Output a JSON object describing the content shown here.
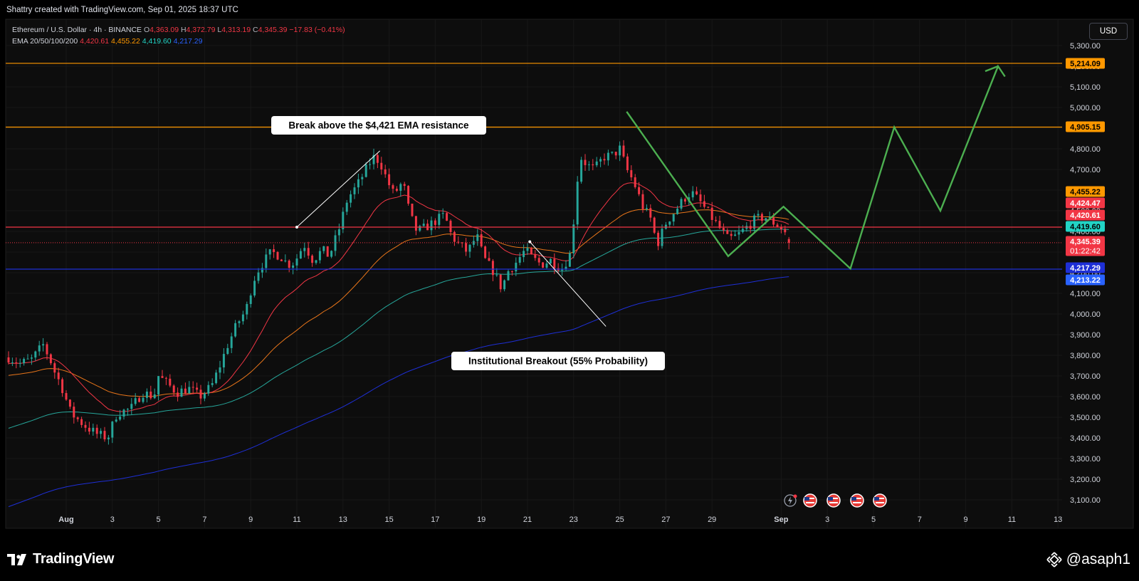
{
  "header": {
    "attribution": "Shattry created with TradingView.com, Sep 01, 2025 18:37 UTC"
  },
  "legend": {
    "symbol": "Ethereum / U.S. Dollar · 4h · BINANCE",
    "o_label": "O",
    "o_value": "4,363.09",
    "h_label": "H",
    "h_value": "4,372.79",
    "l_label": "L",
    "l_value": "4,313.19",
    "c_label": "C",
    "c_value": "4,345.39",
    "change": "−17.83 (−0.41%)",
    "ema_label": "EMA 20/50/100/200",
    "ema20": "4,420.61",
    "ema50": "4,455.22",
    "ema100": "4,419.60",
    "ema200": "4,217.29"
  },
  "toolbar": {
    "currency": "USD"
  },
  "footer": {
    "brand": "TradingView",
    "author": "@asaph1"
  },
  "annotations": [
    {
      "text": "Break above the $4,421 EMA resistance"
    },
    {
      "text": "Institutional Breakout (55% Probability)"
    }
  ],
  "colors": {
    "up": "#26a69a",
    "down": "#f23645",
    "ema20": "#f23645",
    "ema50": "#e8751a",
    "ema100": "#26a69a",
    "ema200": "#1e2fd6",
    "projection": "#4caf50",
    "resistance": "#ff9800",
    "support": "#2962ff",
    "background": "#0d0d0d"
  },
  "chart_data": {
    "type": "candlestick",
    "symbol": "ETHUSD",
    "timeframe": "4h",
    "exchange": "BINANCE",
    "ylim": [
      3050,
      5360
    ],
    "y_ticks": [
      3100,
      3200,
      3300,
      3400,
      3500,
      3600,
      3700,
      3800,
      3900,
      4000,
      4100,
      4200,
      4300,
      4400,
      4500,
      4600,
      4700,
      4800,
      4900,
      5000,
      5100,
      5200,
      5300
    ],
    "y_tick_labels": [
      "3,100.00",
      "3,200.00",
      "3,300.00",
      "3,400.00",
      "3,500.00",
      "3,600.00",
      "3,700.00",
      "3,800.00",
      "3,900.00",
      "4,000.00",
      "4,100.00",
      "4,200.00",
      "4,300.00",
      "4,400.00",
      "4,500.00",
      "4,600.00",
      "4,700.00",
      "4,800.00",
      "4,900.00",
      "5,000.00",
      "5,100.00",
      "5,200.00",
      "5,300.00"
    ],
    "x_ticks": [
      {
        "day": 0,
        "label": "Aug",
        "bold": true
      },
      {
        "day": 2,
        "label": "3"
      },
      {
        "day": 4,
        "label": "5"
      },
      {
        "day": 6,
        "label": "7"
      },
      {
        "day": 8,
        "label": "9"
      },
      {
        "day": 10,
        "label": "11"
      },
      {
        "day": 12,
        "label": "13"
      },
      {
        "day": 14,
        "label": "15"
      },
      {
        "day": 16,
        "label": "17"
      },
      {
        "day": 18,
        "label": "19"
      },
      {
        "day": 20,
        "label": "21"
      },
      {
        "day": 22,
        "label": "23"
      },
      {
        "day": 24,
        "label": "25"
      },
      {
        "day": 26,
        "label": "27"
      },
      {
        "day": 28,
        "label": "29"
      },
      {
        "day": 31,
        "label": "Sep",
        "bold": true
      },
      {
        "day": 33,
        "label": "3"
      },
      {
        "day": 35,
        "label": "5"
      },
      {
        "day": 37,
        "label": "7"
      },
      {
        "day": 39,
        "label": "9"
      },
      {
        "day": 41,
        "label": "11"
      },
      {
        "day": 43,
        "label": "13"
      }
    ],
    "price_anchors": [
      [
        -2.5,
        3790
      ],
      [
        -2.0,
        3760
      ],
      [
        -1.5,
        3780
      ],
      [
        -1.0,
        3850
      ],
      [
        -0.7,
        3780
      ],
      [
        -0.5,
        3720
      ],
      [
        -0.2,
        3650
      ],
      [
        0.2,
        3520
      ],
      [
        0.8,
        3460
      ],
      [
        1.3,
        3420
      ],
      [
        1.8,
        3400
      ],
      [
        2.2,
        3520
      ],
      [
        2.8,
        3540
      ],
      [
        3.3,
        3620
      ],
      [
        3.8,
        3600
      ],
      [
        4.0,
        3700
      ],
      [
        4.4,
        3660
      ],
      [
        4.8,
        3620
      ],
      [
        5.3,
        3640
      ],
      [
        5.8,
        3600
      ],
      [
        6.3,
        3650
      ],
      [
        6.7,
        3760
      ],
      [
        7.0,
        3850
      ],
      [
        7.4,
        3950
      ],
      [
        7.8,
        4020
      ],
      [
        8.1,
        4160
      ],
      [
        8.4,
        4230
      ],
      [
        8.9,
        4300
      ],
      [
        9.3,
        4280
      ],
      [
        9.6,
        4240
      ],
      [
        9.9,
        4250
      ],
      [
        10.3,
        4340
      ],
      [
        10.7,
        4260
      ],
      [
        11.1,
        4310
      ],
      [
        11.4,
        4280
      ],
      [
        11.8,
        4400
      ],
      [
        12.2,
        4560
      ],
      [
        12.6,
        4620
      ],
      [
        13.0,
        4700
      ],
      [
        13.3,
        4760
      ],
      [
        13.6,
        4740
      ],
      [
        13.9,
        4650
      ],
      [
        14.2,
        4580
      ],
      [
        14.6,
        4640
      ],
      [
        14.9,
        4480
      ],
      [
        15.2,
        4400
      ],
      [
        15.6,
        4420
      ],
      [
        16.0,
        4450
      ],
      [
        16.4,
        4480
      ],
      [
        16.7,
        4380
      ],
      [
        17.0,
        4340
      ],
      [
        17.4,
        4300
      ],
      [
        17.8,
        4380
      ],
      [
        18.1,
        4270
      ],
      [
        18.5,
        4210
      ],
      [
        18.9,
        4120
      ],
      [
        19.1,
        4200
      ],
      [
        19.5,
        4250
      ],
      [
        19.9,
        4310
      ],
      [
        20.2,
        4270
      ],
      [
        20.6,
        4240
      ],
      [
        21.0,
        4260
      ],
      [
        21.5,
        4220
      ],
      [
        21.9,
        4300
      ],
      [
        22.1,
        4600
      ],
      [
        22.3,
        4760
      ],
      [
        22.6,
        4720
      ],
      [
        22.9,
        4700
      ],
      [
        23.3,
        4760
      ],
      [
        23.7,
        4770
      ],
      [
        24.0,
        4800
      ],
      [
        24.3,
        4700
      ],
      [
        24.6,
        4640
      ],
      [
        25.0,
        4520
      ],
      [
        25.4,
        4450
      ],
      [
        25.6,
        4330
      ],
      [
        26.0,
        4440
      ],
      [
        26.4,
        4500
      ],
      [
        26.8,
        4560
      ],
      [
        27.1,
        4590
      ],
      [
        27.5,
        4540
      ],
      [
        27.9,
        4480
      ],
      [
        28.3,
        4420
      ],
      [
        28.7,
        4360
      ],
      [
        29.1,
        4380
      ],
      [
        29.5,
        4420
      ],
      [
        29.9,
        4460
      ],
      [
        30.3,
        4470
      ],
      [
        30.7,
        4440
      ],
      [
        31.1,
        4410
      ],
      [
        31.4,
        4345
      ]
    ],
    "ema": [
      {
        "name": "EMA 20",
        "value": 4420.61
      },
      {
        "name": "EMA 50",
        "value": 4455.22
      },
      {
        "name": "EMA 100",
        "value": 4419.6
      },
      {
        "name": "EMA 200",
        "value": 4217.29
      }
    ],
    "horizontal_levels": [
      {
        "value": 5214.09,
        "label": "5,214.09",
        "kind": "resistance"
      },
      {
        "value": 4905.15,
        "label": "4,905.15",
        "kind": "resistance"
      },
      {
        "value": 4420.61,
        "label": "4,420.61",
        "kind": "ema20"
      },
      {
        "value": 4217.29,
        "label": "4,217.29",
        "kind": "ema200"
      }
    ],
    "price_labels": [
      {
        "value": 5214.09,
        "label": "5,214.09",
        "bg": "#ff9800",
        "fg": "#000000"
      },
      {
        "value": 4905.15,
        "label": "4,905.15",
        "bg": "#ff9800",
        "fg": "#000000"
      },
      {
        "value": 4455.22,
        "label": "4,455.22",
        "bg": "#ff9800",
        "fg": "#000000"
      },
      {
        "value": 4424.47,
        "label": "4,424.47",
        "bg": "#f23645",
        "fg": "#ffffff"
      },
      {
        "value": 4420.61,
        "label": "4,420.61",
        "bg": "#f23645",
        "fg": "#ffffff"
      },
      {
        "value": 4419.6,
        "label": "4,419.60",
        "bg": "#22d3c5",
        "fg": "#000000"
      },
      {
        "value": 4345.39,
        "label": "4,345.39",
        "bg": "#f23645",
        "fg": "#ffffff",
        "sub": "01:22:42"
      },
      {
        "value": 4217.29,
        "label": "4,217.29",
        "bg": "#1e2fd6",
        "fg": "#ffffff"
      },
      {
        "value": 4213.22,
        "label": "4,213.22",
        "bg": "#2962ff",
        "fg": "#ffffff"
      }
    ],
    "projection_path": [
      [
        24.3,
        4980
      ],
      [
        28.7,
        4280
      ],
      [
        31.1,
        4520
      ],
      [
        34.0,
        4220
      ],
      [
        35.9,
        4905
      ],
      [
        37.9,
        4500
      ],
      [
        40.4,
        5200
      ],
      [
        40.7,
        5150
      ]
    ],
    "current_price": 4345.39,
    "countdown": "01:22:42"
  }
}
